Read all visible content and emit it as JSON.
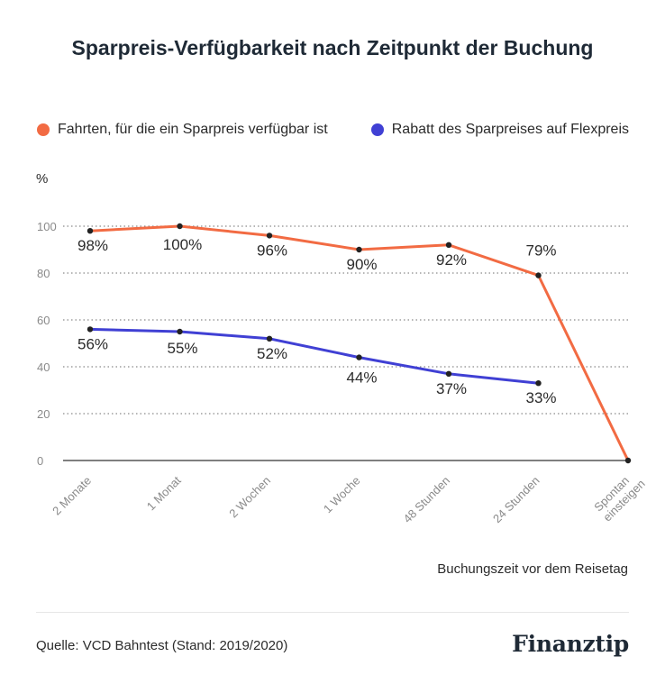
{
  "title": "Sparpreis-Verfügbarkeit nach Zeitpunkt der Buchung",
  "unit_label": "%",
  "x_axis_label": "Buchungszeit vor dem Reisetag",
  "source": "Quelle: VCD Bahntest (Stand: 2019/2020)",
  "brand": "Finanztip",
  "colors": {
    "orange": "#f26b43",
    "blue": "#4040d4",
    "grid": "#8a8a8a",
    "tick": "#8a8a8a",
    "label": "#2b2b2b"
  },
  "chart_data": {
    "type": "line",
    "categories": [
      "2 Monate",
      "1 Monat",
      "2 Wochen",
      "1 Woche",
      "48 Stunden",
      "24 Stunden",
      "Spontan einsteigen"
    ],
    "series": [
      {
        "name": "Fahrten, für die ein Sparpreis verfügbar ist",
        "color": "#f26b43",
        "values": [
          98,
          100,
          96,
          90,
          92,
          79,
          0
        ],
        "labels": [
          "98%",
          "100%",
          "96%",
          "90%",
          "92%",
          "79%",
          ""
        ]
      },
      {
        "name": "Rabatt des Sparpreises auf Flexpreis",
        "color": "#4040d4",
        "values": [
          56,
          55,
          52,
          44,
          37,
          33,
          null
        ],
        "labels": [
          "56%",
          "55%",
          "52%",
          "44%",
          "37%",
          "33%",
          ""
        ]
      }
    ],
    "ylim": [
      0,
      100
    ],
    "yticks": [
      0,
      20,
      40,
      60,
      80,
      100
    ],
    "grid": true,
    "legend": "top"
  }
}
